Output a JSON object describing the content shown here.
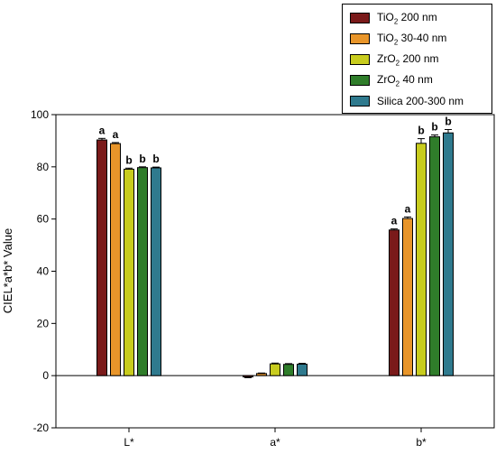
{
  "chart_data": {
    "type": "bar",
    "ylabel": "CIEL*a*b* Value",
    "xlabel": "",
    "ylim": [
      -20,
      100
    ],
    "yticks": [
      -20,
      0,
      20,
      40,
      60,
      80,
      100
    ],
    "categories": [
      "L*",
      "a*",
      "b*"
    ],
    "legend_position": "top-right",
    "series": [
      {
        "name": "TiO2 200 nm",
        "name_parts": [
          "TiO",
          "2",
          " 200 nm"
        ],
        "color": "#7a1a1a",
        "values": [
          90.3,
          -0.5,
          55.8
        ],
        "errors": [
          0.6,
          0.3,
          0.4
        ],
        "labels": [
          "a",
          "",
          "a"
        ]
      },
      {
        "name": "TiO2 30-40 nm",
        "name_parts": [
          "TiO",
          "2",
          " 30-40 nm"
        ],
        "color": "#e8952a",
        "values": [
          88.9,
          0.8,
          60.2
        ],
        "errors": [
          0.4,
          0.2,
          0.6
        ],
        "labels": [
          "a",
          "",
          "a"
        ]
      },
      {
        "name": "ZrO2 200 nm",
        "name_parts": [
          "ZrO",
          "2",
          " 200 nm"
        ],
        "color": "#c8cc1e",
        "values": [
          79.1,
          4.5,
          89.0
        ],
        "errors": [
          0.4,
          0.3,
          1.8
        ],
        "labels": [
          "b",
          "",
          "b"
        ]
      },
      {
        "name": "ZrO2 40 nm",
        "name_parts": [
          "ZrO",
          "2",
          " 40 nm"
        ],
        "color": "#2f7d2a",
        "values": [
          79.7,
          4.3,
          91.5
        ],
        "errors": [
          0.3,
          0.3,
          0.7
        ],
        "labels": [
          "b",
          "",
          "b"
        ]
      },
      {
        "name": "Silica 200-300 nm",
        "name_parts": [
          "Silica 200-300 nm",
          "",
          ""
        ],
        "color": "#2f7a8e",
        "values": [
          79.6,
          4.4,
          93.0
        ],
        "errors": [
          0.3,
          0.3,
          1.3
        ],
        "labels": [
          "b",
          "",
          "b"
        ]
      }
    ]
  }
}
